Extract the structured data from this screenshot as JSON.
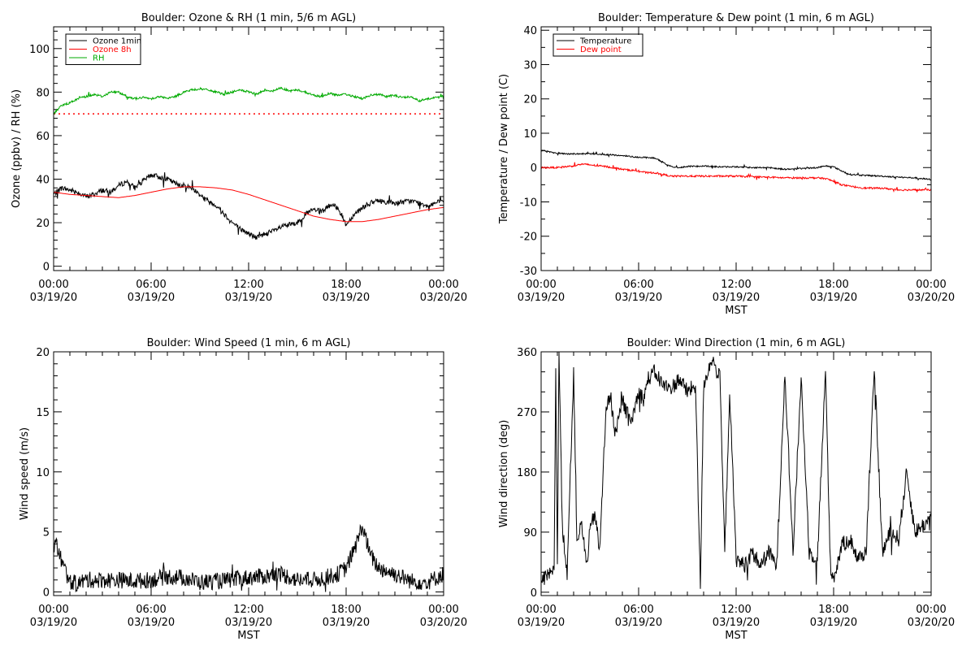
{
  "figure": {
    "background": "#ffffff"
  },
  "chart_data": [
    {
      "id": "ozone",
      "type": "line",
      "title": "Boulder: Ozone & RH (1 min, 5/6 m AGL)",
      "ylabel": "Ozone (ppbv) / RH (%)",
      "xlabel": "",
      "xlim": [
        0,
        24
      ],
      "ylim": [
        -2,
        110
      ],
      "x_ticks": [
        0,
        6,
        12,
        18,
        24
      ],
      "x_tick_labels": [
        [
          "00:00",
          "03/19/20"
        ],
        [
          "06:00",
          "03/19/20"
        ],
        [
          "12:00",
          "03/19/20"
        ],
        [
          "18:00",
          "03/19/20"
        ],
        [
          "00:00",
          "03/20/20"
        ]
      ],
      "y_ticks": [
        0,
        20,
        40,
        60,
        80,
        100
      ],
      "y_tick_labels": [
        "0",
        "20",
        "40",
        "60",
        "80",
        "100"
      ],
      "y_minor": 5,
      "legend": {
        "position": "top-left",
        "entries": [
          {
            "label": "Ozone 1min",
            "color": "#000000"
          },
          {
            "label": "Ozone 8h",
            "color": "#ff0000"
          },
          {
            "label": "RH",
            "color": "#00aa00"
          }
        ]
      },
      "hline": {
        "y": 70,
        "color": "#ff0000",
        "style": "dotted"
      },
      "series": [
        {
          "name": "Ozone 1min",
          "color": "#000000",
          "noise": 1.2,
          "jitter": 0.04,
          "x": [
            0,
            0.5,
            1,
            1.5,
            2,
            2.5,
            3,
            3.5,
            4,
            4.5,
            5,
            5.5,
            6,
            6.5,
            7,
            7.5,
            8,
            8.5,
            9,
            9.5,
            10,
            10.5,
            11,
            11.5,
            12,
            12.5,
            13,
            13.5,
            14,
            14.5,
            15,
            15.5,
            16,
            16.5,
            17,
            17.5,
            18,
            18.5,
            19,
            19.5,
            20,
            21,
            22,
            23,
            24
          ],
          "y": [
            33,
            36,
            35,
            34,
            32,
            33,
            35,
            34,
            37,
            39,
            36,
            39,
            42,
            41,
            40,
            38,
            37,
            36,
            33,
            30,
            28,
            24,
            20,
            17,
            15,
            13,
            15,
            16,
            18,
            19,
            20,
            24,
            26,
            25,
            28,
            27,
            19,
            24,
            27,
            29,
            30,
            29,
            30,
            28,
            30
          ]
        },
        {
          "name": "Ozone 8h",
          "color": "#ff0000",
          "noise": 0,
          "jitter": 0,
          "x": [
            0,
            1,
            2,
            3,
            4,
            5,
            6,
            7,
            8,
            9,
            10,
            11,
            12,
            13,
            14,
            15,
            16,
            17,
            18,
            19,
            20,
            21,
            22,
            23,
            24
          ],
          "y": [
            34,
            33,
            32.5,
            32,
            31.5,
            32.5,
            34,
            35.5,
            36.5,
            36.5,
            36,
            35,
            33,
            30.5,
            28,
            25.5,
            23,
            21.5,
            20.5,
            20.5,
            21.5,
            23,
            24.5,
            26,
            27
          ]
        },
        {
          "name": "RH",
          "color": "#00aa00",
          "noise": 0.5,
          "jitter": 0.03,
          "x": [
            0,
            0.5,
            1,
            1.5,
            2,
            2.5,
            3,
            3.5,
            4,
            4.5,
            5,
            5.5,
            6,
            6.5,
            7,
            7.5,
            8,
            8.5,
            9,
            9.5,
            10,
            10.5,
            11,
            11.5,
            12,
            12.5,
            13,
            13.5,
            14,
            14.5,
            15,
            15.5,
            16,
            16.5,
            17,
            17.5,
            18,
            18.5,
            19,
            19.5,
            20,
            20.5,
            21,
            21.5,
            22,
            22.5,
            23,
            23.5,
            24
          ],
          "y": [
            70,
            74,
            75,
            77,
            78,
            79,
            78,
            80,
            80,
            78,
            77,
            77.5,
            77,
            78,
            77,
            78,
            80,
            81,
            81.5,
            81,
            80,
            79,
            80,
            81,
            80,
            79,
            81,
            80.5,
            82,
            80.5,
            81,
            80,
            78.5,
            78,
            79.5,
            78.5,
            79,
            78,
            77,
            78.5,
            79,
            78,
            78.5,
            77.5,
            78,
            76,
            77,
            77.5,
            78
          ]
        }
      ]
    },
    {
      "id": "temperature",
      "type": "line",
      "title": "Boulder: Temperature & Dew point (1 min, 6 m AGL)",
      "ylabel": "Temperature / Dew point (C)",
      "xlabel": "MST",
      "xlim": [
        0,
        24
      ],
      "ylim": [
        -30,
        41
      ],
      "x_ticks": [
        0,
        6,
        12,
        18,
        24
      ],
      "x_tick_labels": [
        [
          "00:00",
          "03/19/20"
        ],
        [
          "06:00",
          "03/19/20"
        ],
        [
          "12:00",
          "03/19/20"
        ],
        [
          "18:00",
          "03/19/20"
        ],
        [
          "00:00",
          "03/20/20"
        ]
      ],
      "y_ticks": [
        -30,
        -20,
        -10,
        0,
        10,
        20,
        30,
        40
      ],
      "y_tick_labels": [
        "-30",
        "-20",
        "-10",
        "0",
        "10",
        "20",
        "30",
        "40"
      ],
      "y_minor": 2,
      "legend": {
        "position": "top-left",
        "entries": [
          {
            "label": "Temperature",
            "color": "#000000"
          },
          {
            "label": "Dew point",
            "color": "#ff0000"
          }
        ]
      },
      "series": [
        {
          "name": "Temperature",
          "color": "#000000",
          "noise": 0.2,
          "jitter": 0.03,
          "x": [
            0,
            0.5,
            1,
            1.5,
            2,
            2.5,
            3,
            4,
            5,
            6,
            7,
            7.5,
            8,
            8.5,
            9,
            10,
            11,
            12,
            13,
            14,
            15,
            16,
            17,
            17.5,
            18,
            18.5,
            19,
            20,
            21,
            22,
            23,
            24
          ],
          "y": [
            5,
            4.5,
            4.2,
            4,
            4,
            4,
            4,
            3.8,
            3.5,
            3,
            2.8,
            1.5,
            0.3,
            0,
            0.3,
            0.5,
            0.2,
            0.2,
            0,
            0,
            -0.5,
            -0.3,
            0,
            0.5,
            0.2,
            -1,
            -2,
            -2.3,
            -2.5,
            -2.8,
            -3,
            -3.5
          ]
        },
        {
          "name": "Dew point",
          "color": "#ff0000",
          "noise": 0.25,
          "jitter": 0.03,
          "x": [
            0,
            1,
            2,
            2.5,
            3,
            3.5,
            4,
            5,
            6,
            6.5,
            7,
            7.5,
            8,
            9,
            10,
            11,
            12,
            13,
            14,
            15,
            16,
            17,
            17.5,
            18,
            18.5,
            19,
            20,
            21,
            22,
            23,
            24
          ],
          "y": [
            0,
            0,
            0.5,
            1,
            0.8,
            0.5,
            0.3,
            -0.5,
            -1,
            -1.5,
            -1.5,
            -2,
            -2.5,
            -2.5,
            -2.5,
            -2.5,
            -2.5,
            -2.7,
            -2.8,
            -3,
            -3,
            -3,
            -3.2,
            -4,
            -5,
            -5.5,
            -6,
            -6,
            -6.5,
            -6.5,
            -6.5
          ]
        }
      ]
    },
    {
      "id": "windspeed",
      "type": "line",
      "title": "Boulder: Wind Speed (1 min, 6 m AGL)",
      "ylabel": "Wind speed (m/s)",
      "xlabel": "MST",
      "xlim": [
        0,
        24
      ],
      "ylim": [
        -0.3,
        20
      ],
      "x_ticks": [
        0,
        6,
        12,
        18,
        24
      ],
      "x_tick_labels": [
        [
          "00:00",
          "03/19/20"
        ],
        [
          "06:00",
          "03/19/20"
        ],
        [
          "12:00",
          "03/19/20"
        ],
        [
          "18:00",
          "03/19/20"
        ],
        [
          "00:00",
          "03/20/20"
        ]
      ],
      "y_ticks": [
        0,
        5,
        10,
        15,
        20
      ],
      "y_tick_labels": [
        "0",
        "5",
        "10",
        "15",
        "20"
      ],
      "y_minor": 5,
      "series": [
        {
          "name": "Wind speed",
          "color": "#000000",
          "noise": 0.7,
          "jitter": 0.02,
          "clip_min": 0,
          "x": [
            0,
            0.2,
            0.5,
            1,
            1.5,
            2,
            3,
            4,
            5,
            6,
            7,
            8,
            9,
            10,
            11,
            12,
            13,
            14,
            15,
            16,
            17,
            17.5,
            18,
            18.5,
            19,
            19.5,
            20,
            21,
            22,
            23,
            24
          ],
          "y": [
            3.5,
            4,
            2.5,
            0.8,
            0.7,
            1,
            1,
            1,
            0.9,
            1,
            1.3,
            1.2,
            0.8,
            0.9,
            1,
            1.2,
            1.3,
            1.5,
            1,
            1,
            1.3,
            1.5,
            2,
            3.5,
            5.5,
            3,
            2,
            1.5,
            0.9,
            0.8,
            1.5
          ]
        }
      ]
    },
    {
      "id": "winddirection",
      "type": "line",
      "title": "Boulder: Wind Direction (1 min, 6 m AGL)",
      "ylabel": "Wind direction (deg)",
      "xlabel": "MST",
      "xlim": [
        0,
        24
      ],
      "ylim": [
        -5,
        360
      ],
      "x_ticks": [
        0,
        6,
        12,
        18,
        24
      ],
      "x_tick_labels": [
        [
          "00:00",
          "03/19/20"
        ],
        [
          "06:00",
          "03/19/20"
        ],
        [
          "12:00",
          "03/19/20"
        ],
        [
          "18:00",
          "03/19/20"
        ],
        [
          "00:00",
          "03/20/20"
        ]
      ],
      "y_ticks": [
        0,
        90,
        180,
        270,
        360
      ],
      "y_tick_labels": [
        "0",
        "90",
        "180",
        "270",
        "360"
      ],
      "y_minor": 3,
      "series": [
        {
          "name": "Wind direction",
          "color": "#000000",
          "noise": 12,
          "jitter": 0.02,
          "clip_min": 0,
          "clip_max": 360,
          "x": [
            0,
            0.5,
            0.8,
            0.9,
            1.0,
            1.1,
            1.3,
            1.6,
            2.0,
            2.2,
            2.5,
            2.8,
            3.0,
            3.3,
            3.6,
            4.0,
            4.3,
            4.5,
            4.8,
            5.0,
            5.5,
            6.0,
            6.3,
            6.6,
            7.0,
            7.5,
            8.0,
            8.5,
            9.0,
            9.5,
            9.8,
            10.0,
            10.5,
            11.0,
            11.3,
            11.6,
            12.0,
            12.5,
            13.0,
            13.5,
            14.0,
            14.5,
            15.0,
            15.5,
            16.0,
            16.5,
            17.0,
            17.5,
            17.8,
            18.0,
            18.5,
            19.0,
            19.5,
            20.0,
            20.5,
            21.0,
            21.5,
            22.0,
            22.5,
            23.0,
            23.5,
            24.0
          ],
          "y": [
            20,
            25,
            30,
            330,
            40,
            360,
            100,
            30,
            330,
            80,
            100,
            40,
            90,
            120,
            60,
            280,
            290,
            240,
            260,
            290,
            250,
            300,
            290,
            320,
            330,
            310,
            305,
            320,
            300,
            310,
            10,
            310,
            350,
            320,
            60,
            300,
            50,
            40,
            60,
            40,
            60,
            40,
            330,
            60,
            320,
            60,
            50,
            330,
            40,
            20,
            70,
            80,
            50,
            60,
            340,
            60,
            90,
            80,
            180,
            90,
            100,
            110
          ]
        }
      ]
    }
  ]
}
